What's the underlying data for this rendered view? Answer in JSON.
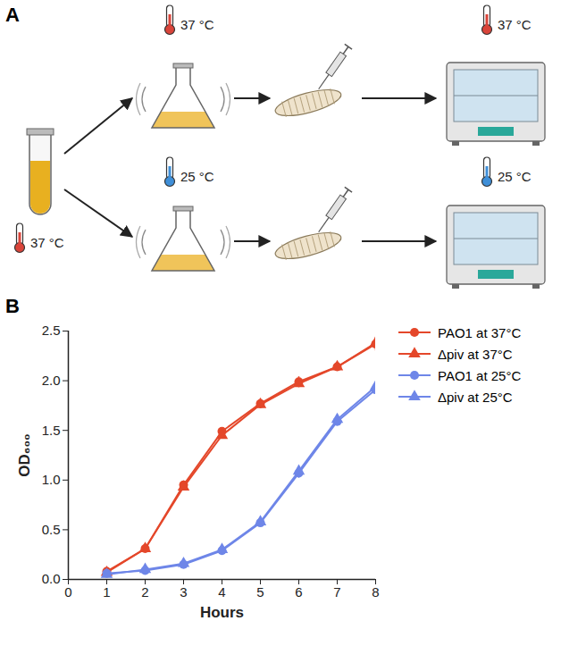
{
  "panel_labels": [
    "A",
    "B"
  ],
  "diagram": {
    "start_temperature": "37 °C",
    "rows": [
      {
        "culture_temperature": "37 °C",
        "incubation_temperature": "37 °C"
      },
      {
        "culture_temperature": "25 °C",
        "incubation_temperature": "25 °C"
      }
    ]
  },
  "chart_data": {
    "type": "line",
    "x_label": "Hours",
    "y_label": "OD₆₀₀",
    "x": [
      1,
      2,
      3,
      4,
      5,
      6,
      7,
      8
    ],
    "xlim": [
      0,
      8
    ],
    "xticks": [
      0,
      1,
      2,
      3,
      4,
      5,
      6,
      7,
      8
    ],
    "ylim": [
      0,
      2.5
    ],
    "yticks": [
      {
        "value": 0,
        "label": "0.0"
      },
      0.5,
      {
        "value": 1,
        "label": "1.0"
      },
      1.5,
      {
        "value": 2,
        "label": "2.0"
      },
      2.5
    ],
    "legend": "right",
    "series": [
      {
        "name": "PAO1 at 37°C",
        "color": "#e4472a",
        "marker": "circle",
        "values": [
          0.08,
          0.31,
          0.95,
          1.49,
          1.77,
          1.99,
          2.14,
          2.37
        ],
        "errors": [
          0.01,
          0.02,
          0.03,
          0.03,
          0.05,
          0.05,
          0.04,
          0.07
        ]
      },
      {
        "name": "Δpiv at 37°C",
        "color": "#e4472a",
        "marker": "triangle",
        "values": [
          0.07,
          0.31,
          0.93,
          1.45,
          1.76,
          1.97,
          2.14,
          2.38
        ],
        "errors": [
          0.01,
          0.02,
          0.03,
          0.03,
          0.03,
          0.04,
          0.04,
          0.05
        ]
      },
      {
        "name": "PAO1 at 25°C",
        "color": "#6e86e8",
        "marker": "circle",
        "values": [
          0.06,
          0.09,
          0.15,
          0.29,
          0.57,
          1.07,
          1.59,
          1.91
        ],
        "errors": [
          0.01,
          0.01,
          0.01,
          0.02,
          0.02,
          0.05,
          0.03,
          0.03
        ]
      },
      {
        "name": "Δpiv at 25°C",
        "color": "#6e86e8",
        "marker": "triangle",
        "values": [
          0.05,
          0.1,
          0.16,
          0.3,
          0.58,
          1.09,
          1.61,
          1.94
        ],
        "errors": [
          0.01,
          0.01,
          0.01,
          0.02,
          0.02,
          0.03,
          0.03,
          0.03
        ]
      }
    ]
  }
}
